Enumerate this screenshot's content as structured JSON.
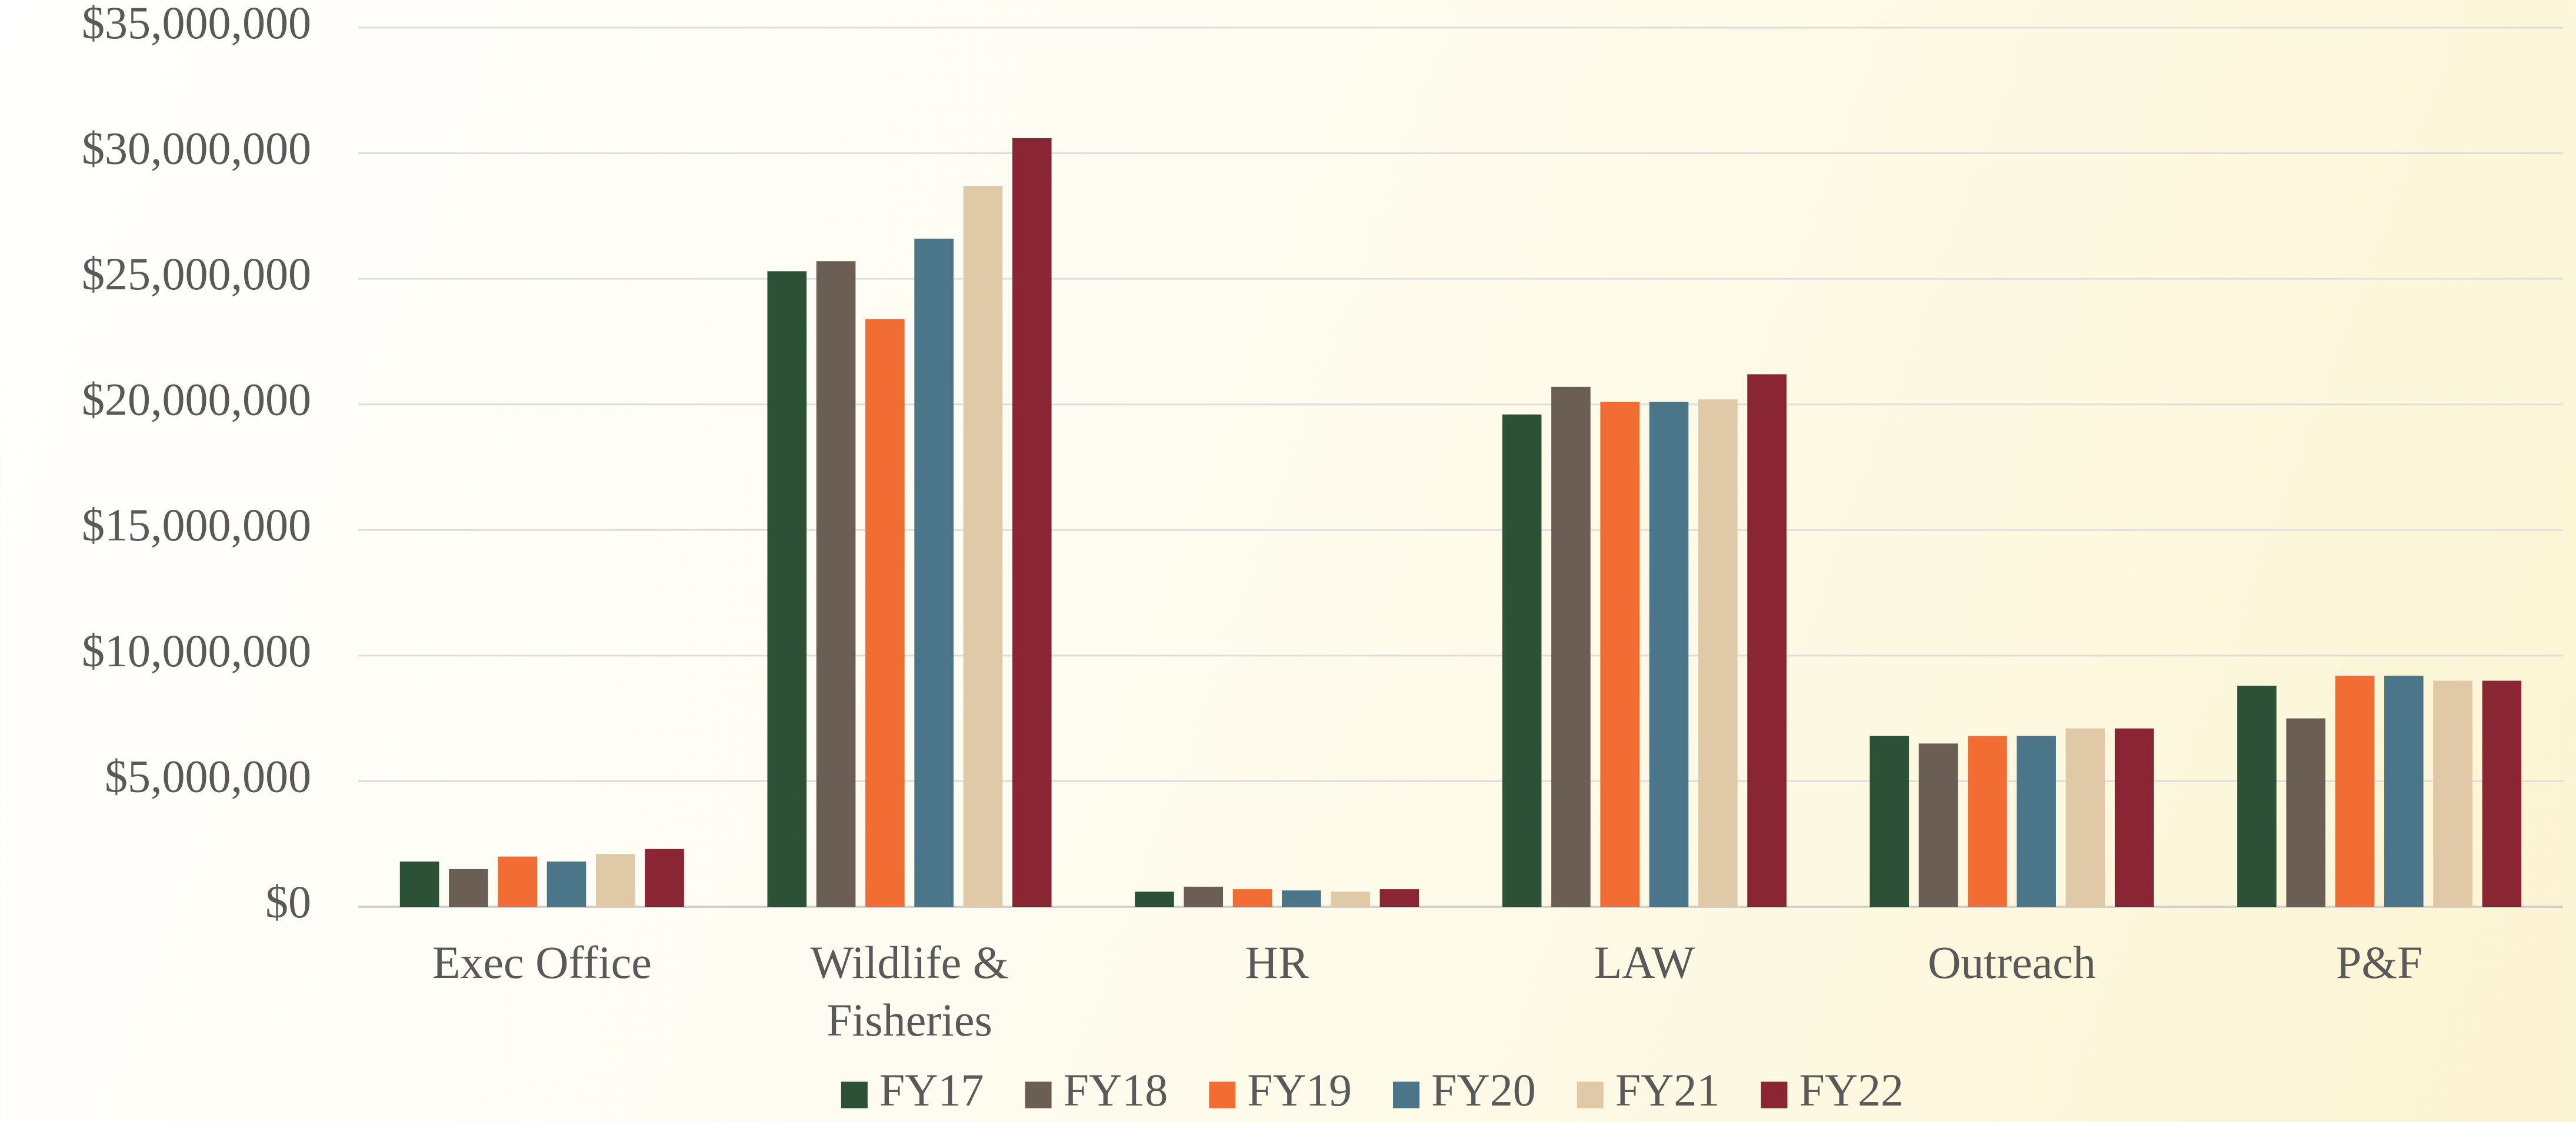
{
  "chart_data": {
    "type": "bar",
    "categories": [
      "Exec Office",
      "Wildlife & Fisheries",
      "HR",
      "LAW",
      "Outreach",
      "P&F"
    ],
    "series": [
      {
        "name": "FY17",
        "color": "#2c5136",
        "values": [
          1800000,
          25300000,
          600000,
          19600000,
          6800000,
          8800000
        ]
      },
      {
        "name": "FY18",
        "color": "#6b5f55",
        "values": [
          1500000,
          25700000,
          800000,
          20700000,
          6500000,
          7500000
        ]
      },
      {
        "name": "FY19",
        "color": "#f16d33",
        "values": [
          2000000,
          23400000,
          700000,
          20100000,
          6800000,
          9200000
        ]
      },
      {
        "name": "FY20",
        "color": "#4b768a",
        "values": [
          1800000,
          26600000,
          650000,
          20100000,
          6800000,
          9200000
        ]
      },
      {
        "name": "FY21",
        "color": "#dfc9a7",
        "values": [
          2100000,
          28700000,
          600000,
          20200000,
          7100000,
          9000000
        ]
      },
      {
        "name": "FY22",
        "color": "#8a2533",
        "values": [
          2300000,
          30600000,
          700000,
          21200000,
          7100000,
          9000000
        ]
      }
    ],
    "ylim": [
      0,
      35000000
    ],
    "yticks": [
      {
        "value": 0,
        "label": "$0"
      },
      {
        "value": 5000000,
        "label": "$5,000,000"
      },
      {
        "value": 10000000,
        "label": "$10,000,000"
      },
      {
        "value": 15000000,
        "label": "$15,000,000"
      },
      {
        "value": 20000000,
        "label": "$20,000,000"
      },
      {
        "value": 25000000,
        "label": "$25,000,000"
      },
      {
        "value": 30000000,
        "label": "$30,000,000"
      },
      {
        "value": 35000000,
        "label": "$35,000,000"
      }
    ],
    "grid": true,
    "legend": "bottom"
  }
}
